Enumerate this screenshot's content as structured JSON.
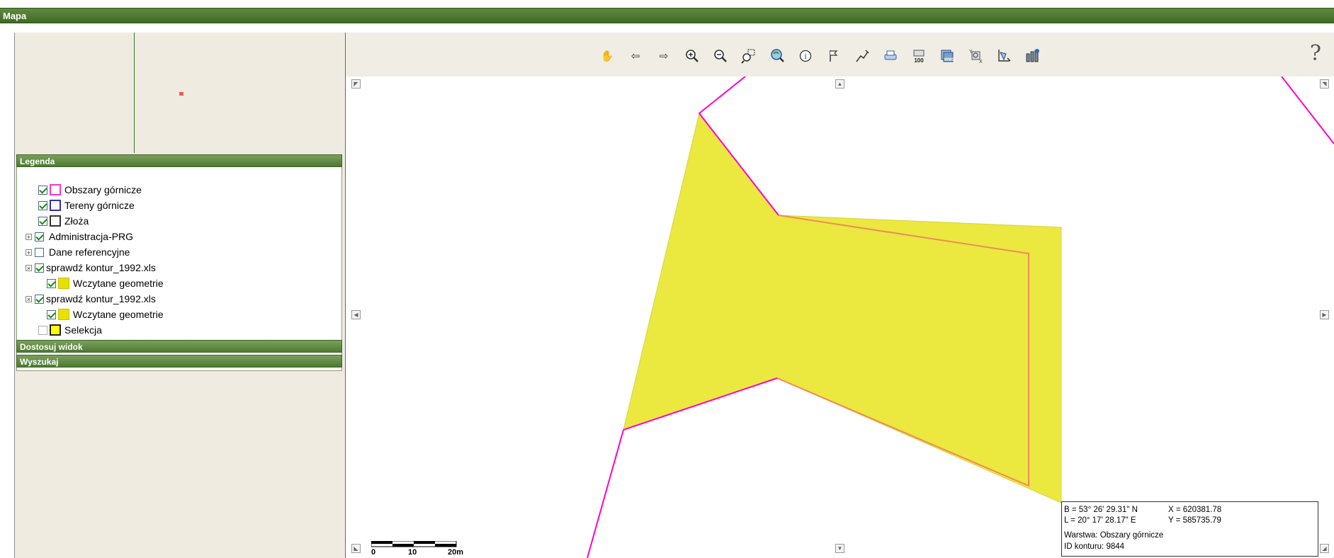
{
  "window": {
    "title": "Mapa"
  },
  "sections": {
    "legend_title": "Legenda",
    "adjust_view": "Dostosuj widok",
    "search": "Wyszukaj"
  },
  "legend": {
    "items": [
      {
        "label": "Obszary górnicze",
        "checked": true,
        "swatch_border": "#ff33cc",
        "swatch_fill": "#ffffff"
      },
      {
        "label": "Tereny górnicze",
        "checked": true,
        "swatch_border": "#3333aa",
        "swatch_fill": "#ffffff"
      },
      {
        "label": "Złoża",
        "checked": true,
        "swatch_border": "#333333",
        "swatch_fill": "#ffffff"
      },
      {
        "label": "Administracja-PRG",
        "checked": true,
        "expander": "+"
      },
      {
        "label": "Dane referencyjne",
        "checked": false,
        "expander": "+"
      },
      {
        "label": "sprawdź kontur_1992.xls",
        "checked": true,
        "expander": "×"
      },
      {
        "label": "Wczytane geometrie",
        "checked": true,
        "swatch_fill": "#e8e000",
        "swatch_border": "#c8c000"
      },
      {
        "label": "sprawdź kontur_1992.xls",
        "checked": true,
        "expander": "×"
      },
      {
        "label": "Wczytane geometrie",
        "checked": true,
        "swatch_fill": "#e8e000",
        "swatch_border": "#c8c000"
      },
      {
        "label": "Selekcja",
        "checked": false,
        "swatch_fill": "#ffff00",
        "swatch_border": "#222222"
      }
    ]
  },
  "toolbar": {
    "tools": [
      "pan-hand-icon",
      "back-arrow-icon",
      "forward-arrow-icon",
      "zoom-in-icon",
      "zoom-out-icon",
      "zoom-box-icon",
      "zoom-extent-icon",
      "info-icon",
      "measure-icon",
      "draw-line-icon",
      "print-icon",
      "scale-100-icon",
      "layers-wms-icon",
      "coordinates-xy-icon",
      "select-polygon-icon",
      "properties-icon"
    ],
    "help_label": "?"
  },
  "infobox": {
    "b_coord": "B = 53° 26' 29.31\" N",
    "l_coord": "L = 20° 17' 28.17\" E",
    "x_coord": "X = 620381.78",
    "y_coord": "Y = 585735.79",
    "layer": "Warstwa: Obszary górnicze",
    "contour_id": "ID konturu: 9844"
  },
  "scale": {
    "labels": [
      "0",
      "10",
      "20m"
    ]
  },
  "colors": {
    "polygon_fill": "#ebe840",
    "polygon_outline": "#f08a5a",
    "boundary_line": "#ff00cc",
    "header_green": "#4d7a33"
  }
}
